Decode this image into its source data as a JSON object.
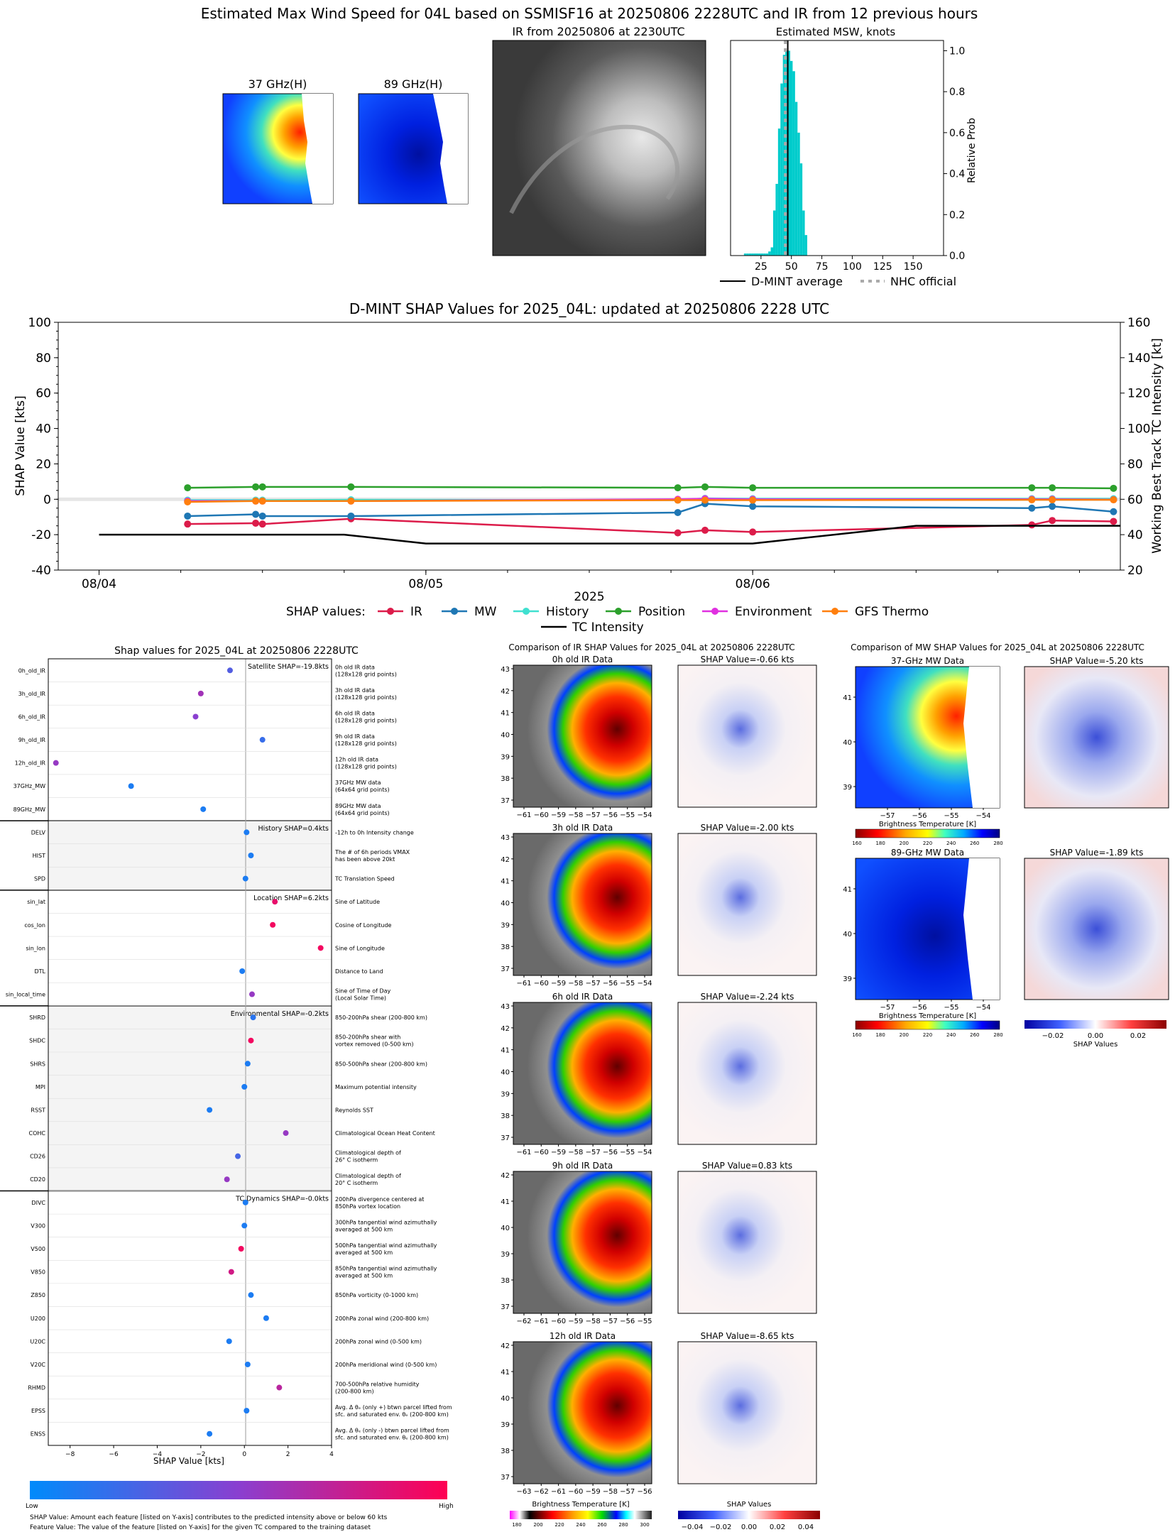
{
  "figure_title": "Estimated Max Wind Speed for 04L based on SSMISF16 at 20250806 2228UTC and IR from 12 previous hours",
  "colors": {
    "ir": "#dc1c4a",
    "mw": "#1f77b4",
    "history": "#40e0d0",
    "position": "#2ca02c",
    "environment": "#e030e0",
    "gfs_thermo": "#ff7f0e",
    "tc_intensity": "#000000",
    "hist_bar": "#00cccc",
    "shap_low": "#008bfb",
    "shap_high": "#ff0052"
  },
  "top": {
    "mw_panels": [
      {
        "title": "37 GHz(H)",
        "image": "37ghz-mw-thumbnail"
      },
      {
        "title": "89 GHz(H)",
        "image": "89ghz-mw-thumbnail"
      }
    ],
    "ir_panel": {
      "title": "IR from 20250806 at 2230UTC",
      "image": "ir-grayscale-image"
    },
    "histogram": {
      "title": "Estimated MSW, knots",
      "ylabel": "Relative Prob",
      "legend": [
        "D-MINT average",
        "NHC official"
      ]
    }
  },
  "shap_ts": {
    "title": "D-MINT SHAP Values for 2025_04L: updated at 20250806 2228 UTC",
    "ylabel_left": "SHAP Value [kts]",
    "ylabel_right": "Working Best Track TC Intensity [kt]",
    "xlabel": "2025",
    "legend_title": "SHAP values:",
    "legend_items": [
      "IR",
      "MW",
      "History",
      "Position",
      "Environment",
      "GFS Thermo",
      "TC Intensity"
    ]
  },
  "bee": {
    "title": "Shap values for 2025_04L at 20250806 2228UTC",
    "xlabel": "SHAP Value [kts]",
    "group_labels": [
      "Satellite SHAP=-19.8kts",
      "History SHAP=0.4kts",
      "Location SHAP=6.2kts",
      "Environmental SHAP=-0.2kts",
      "TC Dynamics SHAP=-0.0kts"
    ],
    "colorbar_low": "Low",
    "colorbar_high": "High",
    "footnote1": "SHAP Value: Amount each feature [listed on Y-axis] contributes to the predicted intensity above or below 60 kts",
    "footnote2": "Feature Value: The value of the feature [listed on Y-axis] for the given TC compared to the training dataset"
  },
  "ir_cmp": {
    "title": "Comparison of IR SHAP Values for 2025_04L at 20250806 2228UTC",
    "rows": [
      {
        "left_title": "0h old IR Data",
        "right_title": "SHAP Value=-0.66 kts",
        "xticks": [
          "−61",
          "−60",
          "−59",
          "−58",
          "−57",
          "−56",
          "−55",
          "−54"
        ],
        "yticks": [
          "43",
          "42",
          "41",
          "40",
          "39",
          "38",
          "37"
        ]
      },
      {
        "left_title": "3h old IR Data",
        "right_title": "SHAP Value=-2.00 kts",
        "xticks": [
          "−61",
          "−60",
          "−59",
          "−58",
          "−57",
          "−56",
          "−55",
          "−54"
        ],
        "yticks": [
          "43",
          "42",
          "41",
          "40",
          "39",
          "38",
          "37"
        ]
      },
      {
        "left_title": "6h old IR Data",
        "right_title": "SHAP Value=-2.24 kts",
        "xticks": [
          "−61",
          "−60",
          "−59",
          "−58",
          "−57",
          "−56",
          "−55",
          "−54"
        ],
        "yticks": [
          "43",
          "42",
          "41",
          "40",
          "39",
          "38",
          "37"
        ]
      },
      {
        "left_title": "9h old IR Data",
        "right_title": "SHAP Value=0.83 kts",
        "xticks": [
          "−62",
          "−61",
          "−60",
          "−59",
          "−58",
          "−57",
          "−56",
          "−55"
        ],
        "yticks": [
          "42",
          "41",
          "40",
          "39",
          "38",
          "37"
        ]
      },
      {
        "left_title": "12h old IR Data",
        "right_title": "SHAP Value=-8.65 kts",
        "xticks": [
          "−63",
          "−62",
          "−61",
          "−60",
          "−59",
          "−58",
          "−57",
          "−56"
        ],
        "yticks": [
          "42",
          "41",
          "40",
          "39",
          "38",
          "37"
        ]
      }
    ],
    "bt_label": "Brightness Temperature [K]",
    "bt_ticks": [
      "180",
      "200",
      "220",
      "240",
      "260",
      "280",
      "300"
    ],
    "shap_label": "SHAP Values",
    "shap_ticks": [
      "−0.04",
      "−0.02",
      "0.00",
      "0.02",
      "0.04"
    ]
  },
  "mw_cmp": {
    "title": "Comparison of MW SHAP Values for 2025_04L at 20250806 2228UTC",
    "rows": [
      {
        "left_title": "37-GHz MW Data",
        "right_title": "SHAP Value=-5.20 kts"
      },
      {
        "left_title": "89-GHz MW Data",
        "right_title": "SHAP Value=-1.89 kts"
      }
    ],
    "xticks": [
      "−57",
      "−56",
      "−55",
      "−54"
    ],
    "yticks": [
      "41",
      "40",
      "39"
    ],
    "bt_label": "Brightness Temperature [K]",
    "bt_ticks": [
      "160",
      "180",
      "200",
      "220",
      "240",
      "260",
      "280"
    ],
    "shap_label": "SHAP Values",
    "shap_ticks": [
      "−0.02",
      "0.00",
      "0.02"
    ]
  },
  "chart_data": [
    {
      "type": "bar",
      "title": "Estimated MSW, knots",
      "ylabel": "Relative Prob",
      "xlim": [
        0,
        175
      ],
      "ylim": [
        0,
        1.05
      ],
      "xticks": [
        25,
        50,
        75,
        100,
        125,
        150
      ],
      "yticks": [
        0.0,
        0.2,
        0.4,
        0.6,
        0.8,
        1.0
      ],
      "bins": [
        12,
        14,
        16,
        18,
        20,
        22,
        24,
        26,
        28,
        30,
        32,
        34,
        36,
        38,
        40,
        42,
        44,
        46,
        48,
        50,
        52,
        54,
        56,
        58,
        60,
        62
      ],
      "values": [
        0.01,
        0.01,
        0.01,
        0.01,
        0.01,
        0.01,
        0.01,
        0.01,
        0.01,
        0.01,
        0.02,
        0.04,
        0.22,
        0.35,
        0.62,
        0.84,
        0.98,
        1.0,
        1.0,
        0.95,
        0.9,
        0.75,
        0.6,
        0.45,
        0.22,
        0.1
      ],
      "dmint_average": 47,
      "nhc_official": 45
    },
    {
      "type": "line",
      "title": "D-MINT SHAP Values for 2025_04L: updated at 20250806 2228 UTC",
      "ylabel": "SHAP Value [kts]",
      "ylabel_right": "Working Best Track TC Intensity [kt]",
      "xlabel": "2025",
      "xticks": [
        "08/04",
        "08/05",
        "08/06"
      ],
      "xlim_hours": [
        -3,
        75
      ],
      "ylim": [
        -40,
        100
      ],
      "ylim_right": [
        20,
        160
      ],
      "shap_times": [
        6.5,
        11.5,
        12.0,
        18.5,
        42.5,
        44.5,
        48.0,
        68.5,
        70.0,
        74.5
      ],
      "series": [
        {
          "name": "IR",
          "values": [
            -14,
            -13.5,
            -14,
            -11,
            -19,
            -17.5,
            -18.5,
            -14.5,
            -12,
            -12.5
          ]
        },
        {
          "name": "MW",
          "values": [
            -9.5,
            -8.5,
            -9.5,
            -9.5,
            -7.5,
            -2.5,
            -4,
            -5,
            -4,
            -7
          ]
        },
        {
          "name": "History",
          "values": [
            -0.5,
            -0.5,
            -0.5,
            -0.3,
            -0.5,
            0.5,
            0.3,
            0.3,
            0.3,
            0.3
          ]
        },
        {
          "name": "Position",
          "values": [
            6.5,
            7,
            7,
            7,
            6.5,
            7,
            6.5,
            6.5,
            6.5,
            6.2
          ]
        },
        {
          "name": "Environment",
          "values": [
            -1,
            -1,
            -1,
            -1,
            0,
            0.3,
            0,
            0,
            0,
            -0.2
          ]
        },
        {
          "name": "GFS Thermo",
          "values": [
            -1.5,
            -1,
            -1,
            -1,
            -0.5,
            -0.5,
            -0.5,
            -0.3,
            -0.3,
            -0.3
          ]
        }
      ],
      "tc_intensity": {
        "name": "TC Intensity",
        "times": [
          0,
          18,
          24,
          48,
          60,
          75
        ],
        "values": [
          40,
          40,
          35,
          35,
          45,
          45
        ]
      }
    },
    {
      "type": "scatter",
      "title": "Shap values for 2025_04L at 20250806 2228UTC",
      "xlabel": "SHAP Value [kts]",
      "xlim": [
        -9,
        4
      ],
      "xticks": [
        -8,
        -6,
        -4,
        -2,
        0,
        2,
        4
      ],
      "features": [
        {
          "name": "0h_old_IR",
          "desc": [
            "0h old IR data",
            "(128x128 grid points)"
          ],
          "shap": -0.66,
          "level": 0.3
        },
        {
          "name": "3h_old_IR",
          "desc": [
            "3h old IR data",
            "(128x128 grid points)"
          ],
          "shap": -2.0,
          "level": 0.6
        },
        {
          "name": "6h_old_IR",
          "desc": [
            "6h old IR data",
            "(128x128 grid points)"
          ],
          "shap": -2.24,
          "level": 0.5
        },
        {
          "name": "9h_old_IR",
          "desc": [
            "9h old IR data",
            "(128x128 grid points)"
          ],
          "shap": 0.83,
          "level": 0.2
        },
        {
          "name": "12h_old_IR",
          "desc": [
            "12h old IR data",
            "(128x128 grid points)"
          ],
          "shap": -8.65,
          "level": 0.55
        },
        {
          "name": "37GHz_MW",
          "desc": [
            "37GHz MW data",
            "(64x64 grid points)"
          ],
          "shap": -5.2,
          "level": 0.1
        },
        {
          "name": "89GHz_MW",
          "desc": [
            "89GHz MW data",
            "(64x64 grid points)"
          ],
          "shap": -1.89,
          "level": 0.1
        },
        {
          "name": "DELV",
          "desc": [
            "-12h to 0h Intensity change"
          ],
          "shap": 0.1,
          "level": 0.1
        },
        {
          "name": "HIST",
          "desc": [
            "The # of 6h periods VMAX",
            "has been above 20kt"
          ],
          "shap": 0.3,
          "level": 0.1
        },
        {
          "name": "SPD",
          "desc": [
            "TC Translation Speed"
          ],
          "shap": 0.05,
          "level": 0.1
        },
        {
          "name": "sin_lat",
          "desc": [
            "Sine of Latitude"
          ],
          "shap": 1.4,
          "level": 0.9
        },
        {
          "name": "cos_lon",
          "desc": [
            "Cosine of Longitude"
          ],
          "shap": 1.3,
          "level": 0.95
        },
        {
          "name": "sin_lon",
          "desc": [
            "Sine of Longitude"
          ],
          "shap": 3.5,
          "level": 0.95
        },
        {
          "name": "DTL",
          "desc": [
            "Distance to Land"
          ],
          "shap": -0.1,
          "level": 0.1
        },
        {
          "name": "sin_local_time",
          "desc": [
            "Sine of Time of Day",
            "(Local Solar Time)"
          ],
          "shap": 0.35,
          "level": 0.55
        },
        {
          "name": "SHRD",
          "desc": [
            "850-200hPa shear (200-800 km)"
          ],
          "shap": 0.4,
          "level": 0.15
        },
        {
          "name": "SHDC",
          "desc": [
            "850-200hPa shear with",
            "vortex removed (0-500 km)"
          ],
          "shap": 0.3,
          "level": 0.95
        },
        {
          "name": "SHRS",
          "desc": [
            "850-500hPa shear (200-800 km)"
          ],
          "shap": 0.15,
          "level": 0.1
        },
        {
          "name": "MPI",
          "desc": [
            "Maximum potential intensity"
          ],
          "shap": 0.0,
          "level": 0.1
        },
        {
          "name": "RSST",
          "desc": [
            "Reynolds SST"
          ],
          "shap": -1.6,
          "level": 0.1
        },
        {
          "name": "COHC",
          "desc": [
            "Climatological Ocean Heat Content"
          ],
          "shap": 1.9,
          "level": 0.55
        },
        {
          "name": "CD26",
          "desc": [
            "Climatological depth of",
            "26° C isotherm"
          ],
          "shap": -0.3,
          "level": 0.25
        },
        {
          "name": "CD20",
          "desc": [
            "Climatological depth of",
            "20° C isotherm"
          ],
          "shap": -0.8,
          "level": 0.55
        },
        {
          "name": "DIVC",
          "desc": [
            "200hPa divergence centered at",
            "850hPa vortex location"
          ],
          "shap": 0.05,
          "level": 0.1
        },
        {
          "name": "V300",
          "desc": [
            "300hPa tangential wind azimuthally",
            "averaged at 500 km"
          ],
          "shap": 0.0,
          "level": 0.1
        },
        {
          "name": "V500",
          "desc": [
            "500hPa tangential wind azimuthally",
            "averaged at 500 km"
          ],
          "shap": -0.15,
          "level": 0.95
        },
        {
          "name": "V850",
          "desc": [
            "850hPa tangential wind azimuthally",
            "averaged at 500 km"
          ],
          "shap": -0.6,
          "level": 0.8
        },
        {
          "name": "Z850",
          "desc": [
            "850hPa vorticity (0-1000 km)"
          ],
          "shap": 0.3,
          "level": 0.1
        },
        {
          "name": "U200",
          "desc": [
            "200hPa zonal wind (200-800 km)"
          ],
          "shap": 1.0,
          "level": 0.1
        },
        {
          "name": "U20C",
          "desc": [
            "200hPa zonal wind (0-500 km)"
          ],
          "shap": -0.7,
          "level": 0.1
        },
        {
          "name": "V20C",
          "desc": [
            "200hPa meridional wind (0-500 km)"
          ],
          "shap": 0.15,
          "level": 0.1
        },
        {
          "name": "RHMD",
          "desc": [
            "700-500hPa relative humidity",
            "(200-800 km)"
          ],
          "shap": 1.6,
          "level": 0.7
        },
        {
          "name": "EPSS",
          "desc": [
            "Avg. Δ θₑ (only +) btwn parcel lifted from",
            "sfc. and saturated env. θₑ (200-800 km)"
          ],
          "shap": 0.1,
          "level": 0.1
        },
        {
          "name": "ENSS",
          "desc": [
            "Avg. Δ θₑ (only -) btwn parcel lifted from",
            "sfc. and saturated env. θₑ (200-800 km)"
          ],
          "shap": -1.6,
          "level": 0.1
        }
      ]
    }
  ]
}
